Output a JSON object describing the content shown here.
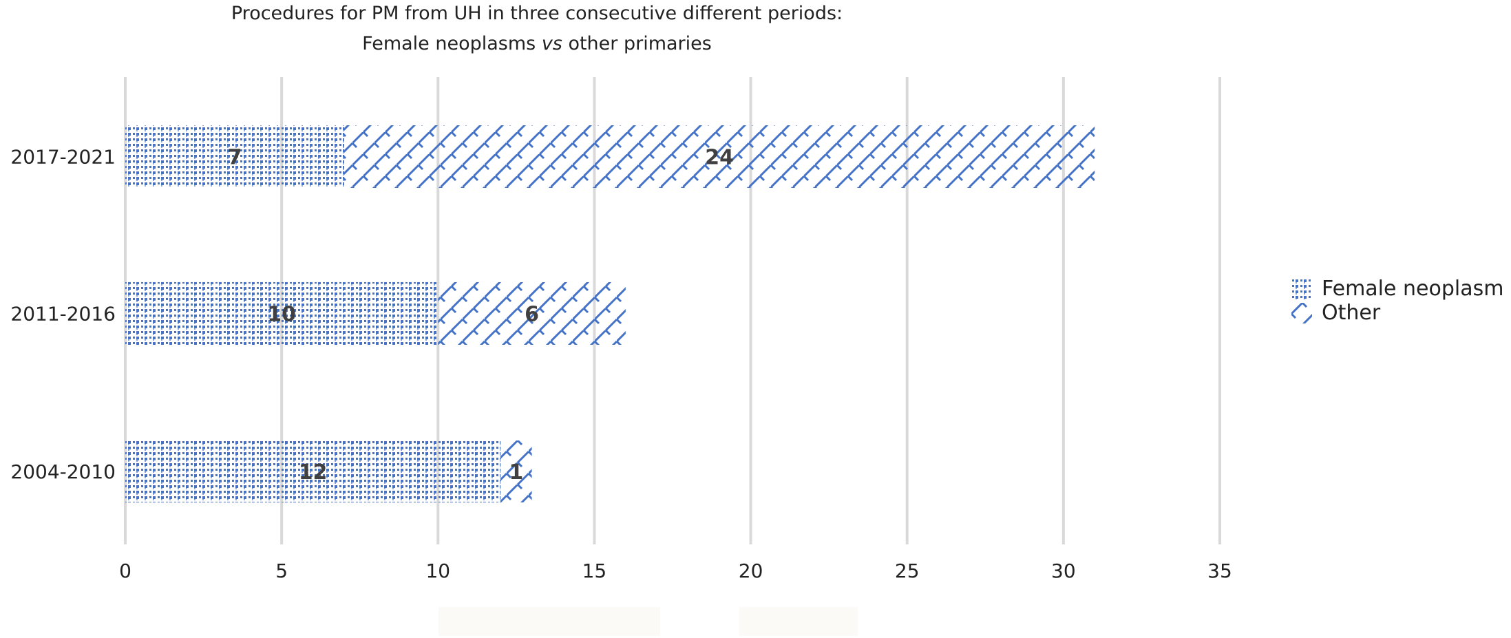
{
  "chart_data": {
    "type": "bar",
    "orientation": "horizontal",
    "stacked": true,
    "title_line1": "Procedures for PM from UH in three consecutive different periods:",
    "title_line2_prefix": "Female neoplasms ",
    "title_line2_italic": "vs",
    "title_line2_suffix": " other primaries",
    "categories": [
      "2017-2021",
      "2011-2016",
      "2004-2010"
    ],
    "series": [
      {
        "name": "Female neoplasm",
        "values": [
          7,
          10,
          12
        ],
        "color": "#4472c4",
        "pattern": "dots"
      },
      {
        "name": "Other",
        "values": [
          24,
          6,
          1
        ],
        "color": "#4472c4",
        "pattern": "zigzag"
      }
    ],
    "xlim": [
      0,
      35
    ],
    "xticks": [
      "0",
      "5",
      "10",
      "15",
      "20",
      "25",
      "30",
      "35"
    ],
    "grid": "vertical",
    "legend": "right",
    "label_color": "#404040"
  }
}
